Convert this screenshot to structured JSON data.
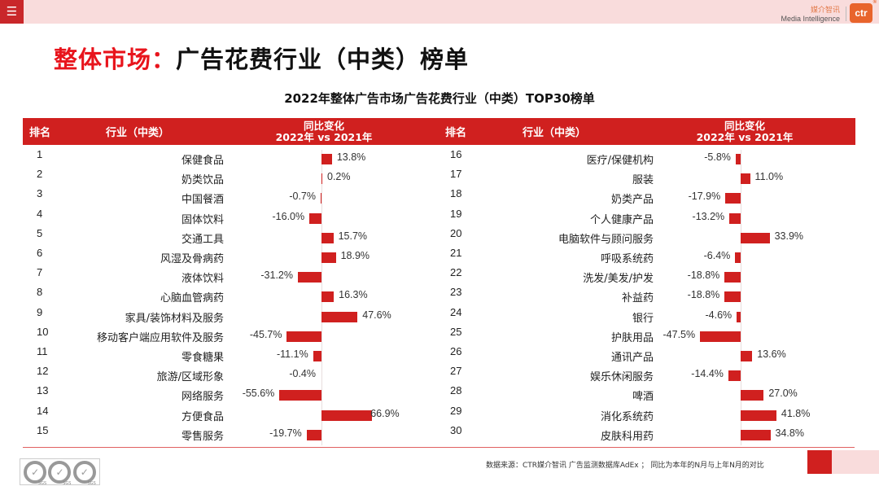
{
  "topbar": {
    "menu_icon": "☰",
    "brand_cn": "媒介智讯",
    "brand_en": "Media Intelligence",
    "brand_logo": "ctr",
    "brand_logo_mark": "®"
  },
  "page_title": {
    "highlight": "整体市场：",
    "rest": "广告花费行业（中类）榜单"
  },
  "table_headers": {
    "rank": "排名",
    "industry": "行业（中类）",
    "change_line1": "同比变化",
    "change_line2": "2022年 vs 2021年"
  },
  "colors": {
    "accent": "#d0201f",
    "title_red": "#e8141c",
    "topbar_pink": "#f9dcdc",
    "brand_orange": "#e8642c"
  },
  "footer": {
    "source": "数据来源：CTR媒介智讯 广告监测数据库AdEx ； 同比为本年的N月与上年N月的对比",
    "certification": "SGS"
  },
  "chart_data": {
    "type": "bar",
    "orientation": "horizontal",
    "title": "2022年整体广告市场广告花费行业（中类）TOP30榜单",
    "xlabel": "同比变化 2022年 vs 2021年",
    "ylabel": "行业（中类）",
    "unit": "%",
    "grid": false,
    "legend": "none",
    "rows": [
      {
        "rank": "1",
        "industry": "保健食品",
        "value": 13.8,
        "label": "13.8%"
      },
      {
        "rank": "2",
        "industry": "奶类饮品",
        "value": 0.2,
        "label": "0.2%"
      },
      {
        "rank": "3",
        "industry": "中国餐酒",
        "value": -0.7,
        "label": "-0.7%"
      },
      {
        "rank": "4",
        "industry": "固体饮料",
        "value": -16.0,
        "label": "-16.0%"
      },
      {
        "rank": "5",
        "industry": "交通工具",
        "value": 15.7,
        "label": "15.7%"
      },
      {
        "rank": "6",
        "industry": "风湿及骨病药",
        "value": 18.9,
        "label": "18.9%"
      },
      {
        "rank": "7",
        "industry": "液体饮料",
        "value": -31.2,
        "label": "-31.2%"
      },
      {
        "rank": "8",
        "industry": "心脑血管病药",
        "value": 16.3,
        "label": "16.3%"
      },
      {
        "rank": "9",
        "industry": "家具/装饰材料及服务",
        "value": 47.6,
        "label": "47.6%"
      },
      {
        "rank": "10",
        "industry": "移动客户端应用软件及服务",
        "value": -45.7,
        "label": "-45.7%"
      },
      {
        "rank": "11",
        "industry": "零食糖果",
        "value": -11.1,
        "label": "-11.1%"
      },
      {
        "rank": "12",
        "industry": "旅游/区域形象",
        "value": -0.4,
        "label": "-0.4%"
      },
      {
        "rank": "13",
        "industry": "网络服务",
        "value": -55.6,
        "label": "-55.6%"
      },
      {
        "rank": "14",
        "industry": "方便食品",
        "value": 66.9,
        "label": "66.9%"
      },
      {
        "rank": "15",
        "industry": "零售服务",
        "value": -19.7,
        "label": "-19.7%"
      },
      {
        "rank": "16",
        "industry": "医疗/保健机构",
        "value": -5.8,
        "label": "-5.8%"
      },
      {
        "rank": "17",
        "industry": "服装",
        "value": 11.0,
        "label": "11.0%"
      },
      {
        "rank": "18",
        "industry": "奶类产品",
        "value": -17.9,
        "label": "-17.9%"
      },
      {
        "rank": "19",
        "industry": "个人健康产品",
        "value": -13.2,
        "label": "-13.2%"
      },
      {
        "rank": "20",
        "industry": "电脑软件与顾问服务",
        "value": 33.9,
        "label": "33.9%"
      },
      {
        "rank": "21",
        "industry": "呼吸系统药",
        "value": -6.4,
        "label": "-6.4%"
      },
      {
        "rank": "22",
        "industry": "洗发/美发/护发",
        "value": -18.8,
        "label": "-18.8%"
      },
      {
        "rank": "23",
        "industry": "补益药",
        "value": -18.8,
        "label": "-18.8%"
      },
      {
        "rank": "24",
        "industry": "银行",
        "value": -4.6,
        "label": "-4.6%"
      },
      {
        "rank": "25",
        "industry": "护肤用品",
        "value": -47.5,
        "label": "-47.5%"
      },
      {
        "rank": "26",
        "industry": "通讯产品",
        "value": 13.6,
        "label": "13.6%"
      },
      {
        "rank": "27",
        "industry": "娱乐休闲服务",
        "value": -14.4,
        "label": "-14.4%"
      },
      {
        "rank": "28",
        "industry": "啤酒",
        "value": 27.0,
        "label": "27.0%"
      },
      {
        "rank": "29",
        "industry": "消化系统药",
        "value": 41.8,
        "label": "41.8%"
      },
      {
        "rank": "30",
        "industry": "皮肤科用药",
        "value": 34.8,
        "label": "34.8%"
      }
    ]
  }
}
